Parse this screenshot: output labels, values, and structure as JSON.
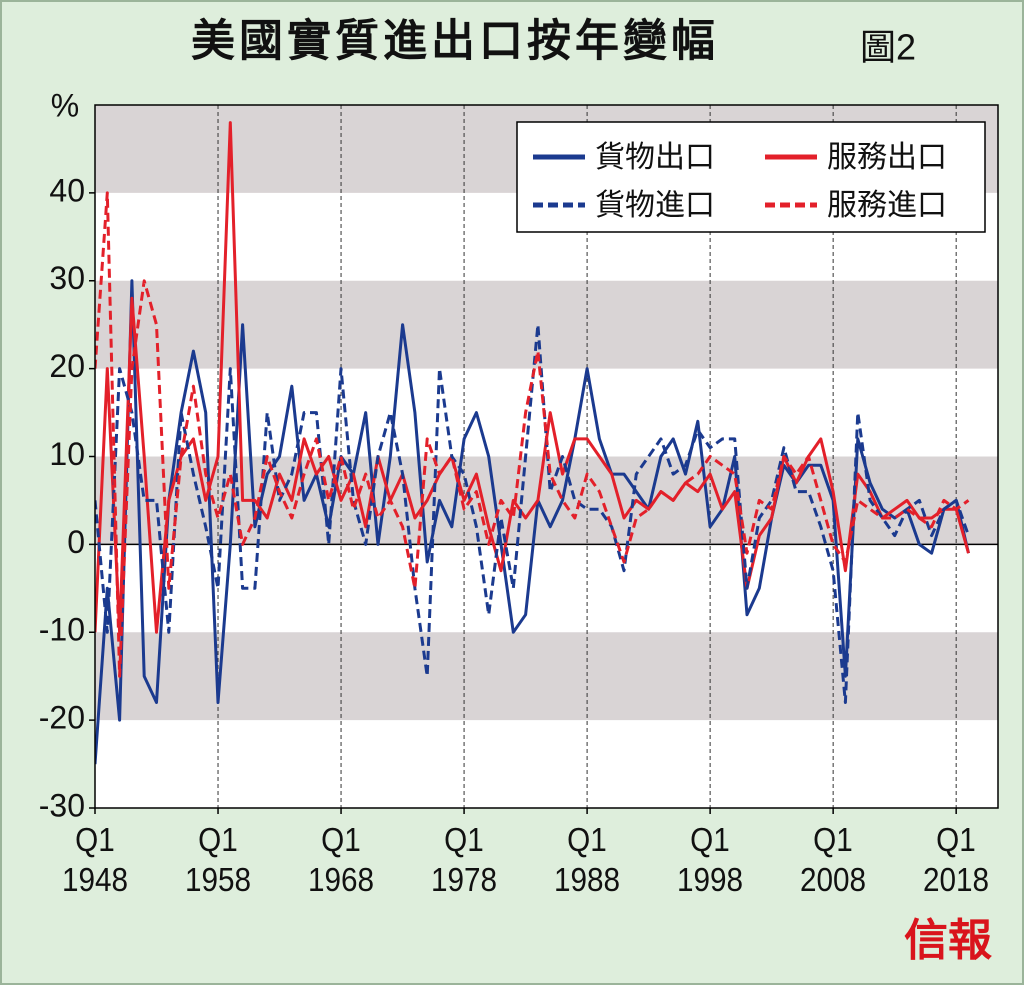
{
  "chart_data": {
    "type": "line",
    "title": "美國實質進出口按年變幅",
    "figure_label": "圖2",
    "ylabel": "%",
    "source": "信報",
    "x": [
      1948,
      1949,
      1950,
      1951,
      1952,
      1953,
      1954,
      1955,
      1956,
      1957,
      1958,
      1959,
      1960,
      1961,
      1962,
      1963,
      1964,
      1965,
      1966,
      1967,
      1968,
      1969,
      1970,
      1971,
      1972,
      1973,
      1974,
      1975,
      1976,
      1977,
      1978,
      1979,
      1980,
      1981,
      1982,
      1983,
      1984,
      1985,
      1986,
      1987,
      1988,
      1989,
      1990,
      1991,
      1992,
      1993,
      1994,
      1995,
      1996,
      1997,
      1998,
      1999,
      2000,
      2001,
      2002,
      2003,
      2004,
      2005,
      2006,
      2007,
      2008,
      2009,
      2010,
      2011,
      2012,
      2013,
      2014,
      2015,
      2016,
      2017,
      2018,
      2019
    ],
    "xlim": [
      1948,
      2021.4
    ],
    "xticks": [
      {
        "value": 1948,
        "label": "Q1 1948"
      },
      {
        "value": 1958,
        "label": "Q1 1958"
      },
      {
        "value": 1968,
        "label": "Q1 1968"
      },
      {
        "value": 1978,
        "label": "Q1 1978"
      },
      {
        "value": 1988,
        "label": "Q1 1988"
      },
      {
        "value": 1998,
        "label": "Q1 1998"
      },
      {
        "value": 2008,
        "label": "Q1 2008"
      },
      {
        "value": 2018,
        "label": "Q1 2018"
      }
    ],
    "ylim": [
      -30,
      50
    ],
    "yticks": [
      -30,
      -20,
      -10,
      0,
      10,
      20,
      30,
      40
    ],
    "grid": true,
    "legend": "upper right",
    "series": [
      {
        "name": "貨物出口",
        "color": "#1b3a8f",
        "style": "solid",
        "values": [
          -25,
          -5,
          -20,
          30,
          -15,
          -18,
          5,
          15,
          22,
          15,
          -18,
          0,
          25,
          2,
          8,
          10,
          18,
          5,
          8,
          2,
          10,
          8,
          15,
          0,
          10,
          25,
          15,
          -2,
          5,
          2,
          12,
          15,
          10,
          0,
          -10,
          -8,
          5,
          2,
          5,
          12,
          20,
          12,
          8,
          8,
          6,
          4,
          10,
          12,
          8,
          14,
          2,
          4,
          10,
          -8,
          -5,
          3,
          9,
          7,
          9,
          9,
          5,
          -15,
          12,
          7,
          4,
          3,
          4,
          0,
          -1,
          4,
          5,
          -1
        ]
      },
      {
        "name": "服務出口",
        "color": "#e3202a",
        "style": "solid",
        "values": [
          -10,
          20,
          -10,
          28,
          10,
          -10,
          5,
          10,
          12,
          5,
          10,
          48,
          5,
          5,
          3,
          8,
          5,
          12,
          8,
          10,
          5,
          8,
          2,
          10,
          5,
          8,
          3,
          5,
          8,
          10,
          5,
          8,
          2,
          -3,
          5,
          3,
          5,
          15,
          8,
          12,
          12,
          10,
          8,
          3,
          5,
          4,
          6,
          5,
          7,
          6,
          8,
          4,
          6,
          -5,
          1,
          3,
          10,
          7,
          10,
          12,
          6,
          -3,
          8,
          6,
          3,
          4,
          5,
          3,
          3,
          4,
          4,
          -1
        ]
      },
      {
        "name": "貨物進口",
        "color": "#1b3a8f",
        "style": "dashed",
        "values": [
          5,
          -10,
          20,
          15,
          5,
          5,
          -10,
          15,
          8,
          2,
          -5,
          20,
          -5,
          -5,
          15,
          5,
          8,
          15,
          15,
          0,
          20,
          5,
          0,
          10,
          15,
          8,
          -5,
          -15,
          20,
          10,
          8,
          2,
          -8,
          3,
          -5,
          10,
          25,
          6,
          10,
          5,
          4,
          4,
          2,
          -3,
          8,
          10,
          12,
          8,
          9,
          13,
          11,
          12,
          12,
          -5,
          3,
          5,
          11,
          6,
          6,
          2,
          -3,
          -18,
          15,
          5,
          3,
          1,
          4,
          5,
          1,
          4,
          5,
          1
        ]
      },
      {
        "name": "服務進口",
        "color": "#e3202a",
        "style": "dashed",
        "values": [
          20,
          40,
          -15,
          20,
          30,
          25,
          -5,
          10,
          18,
          8,
          3,
          8,
          0,
          3,
          10,
          6,
          3,
          8,
          12,
          5,
          10,
          4,
          8,
          3,
          5,
          2,
          -5,
          12,
          8,
          10,
          4,
          6,
          0,
          5,
          3,
          15,
          22,
          8,
          5,
          3,
          8,
          6,
          2,
          -2,
          3,
          4,
          6,
          5,
          7,
          8,
          10,
          9,
          8,
          -1,
          5,
          4,
          10,
          8,
          10,
          5,
          0,
          -2,
          5,
          4,
          3,
          3,
          4,
          3,
          2,
          5,
          4,
          5
        ]
      }
    ]
  }
}
